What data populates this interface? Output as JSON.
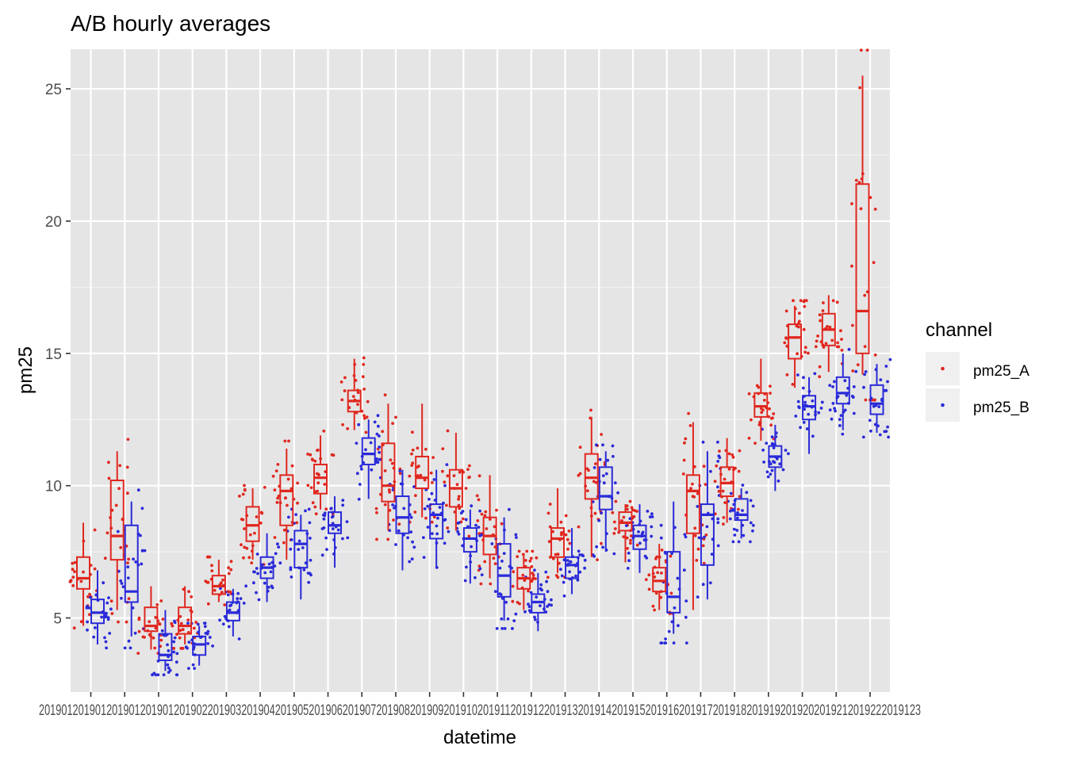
{
  "chart_data": {
    "type": "boxplot",
    "title": "A/B hourly averages",
    "xlabel": "datetime",
    "ylabel": "pm25",
    "ylim": [
      2.2,
      26.5
    ],
    "y_ticks": [
      5,
      10,
      15,
      20,
      25
    ],
    "grid": true,
    "legend": {
      "title": "channel",
      "position": "right"
    },
    "x_tick_label_text": "2019012019012019012019012019022019032019042019052019062019072019082019092019102019112019122019132019142019152019162019172019182019192019202019212019222019123",
    "series": [
      {
        "name": "pm25_A",
        "color": "#E0271F"
      },
      {
        "name": "pm25_B",
        "color": "#2A2AD9"
      }
    ],
    "categories": [
      "00",
      "01",
      "02",
      "03",
      "04",
      "05",
      "06",
      "07",
      "08",
      "09",
      "10",
      "11",
      "12",
      "13",
      "14",
      "15",
      "16",
      "17",
      "18",
      "19",
      "20",
      "21",
      "22",
      "23"
    ],
    "boxes": {
      "pm25_A": [
        {
          "lo": 4.7,
          "q1": 6.1,
          "med": 6.5,
          "q3": 7.3,
          "hi": 8.6
        },
        {
          "lo": 5.3,
          "q1": 7.2,
          "med": 8.1,
          "q3": 10.2,
          "hi": 11.3
        },
        {
          "lo": 3.8,
          "q1": 4.5,
          "med": 4.7,
          "q3": 5.4,
          "hi": 6.2
        },
        {
          "lo": 4.0,
          "q1": 4.4,
          "med": 4.7,
          "q3": 5.4,
          "hi": 6.2
        },
        {
          "lo": 5.6,
          "q1": 5.9,
          "med": 6.2,
          "q3": 6.6,
          "hi": 7.2
        },
        {
          "lo": 7.2,
          "q1": 7.9,
          "med": 8.5,
          "q3": 9.2,
          "hi": 9.9
        },
        {
          "lo": 7.2,
          "q1": 8.5,
          "med": 9.8,
          "q3": 10.4,
          "hi": 11.4
        },
        {
          "lo": 9.1,
          "q1": 9.7,
          "med": 10.3,
          "q3": 10.8,
          "hi": 11.9
        },
        {
          "lo": 12.1,
          "q1": 12.8,
          "med": 13.2,
          "q3": 13.6,
          "hi": 14.8
        },
        {
          "lo": 8.3,
          "q1": 9.4,
          "med": 10.0,
          "q3": 11.6,
          "hi": 13.1
        },
        {
          "lo": 8.8,
          "q1": 9.9,
          "med": 10.3,
          "q3": 11.1,
          "hi": 13.1
        },
        {
          "lo": 8.3,
          "q1": 9.2,
          "med": 9.9,
          "q3": 10.6,
          "hi": 12.0
        },
        {
          "lo": 6.5,
          "q1": 7.4,
          "med": 8.1,
          "q3": 8.8,
          "hi": 10.4
        },
        {
          "lo": 5.3,
          "q1": 6.1,
          "med": 6.5,
          "q3": 6.9,
          "hi": 7.4
        },
        {
          "lo": 6.7,
          "q1": 7.3,
          "med": 8.0,
          "q3": 8.4,
          "hi": 9.9
        },
        {
          "lo": 7.3,
          "q1": 9.5,
          "med": 10.3,
          "q3": 11.2,
          "hi": 12.6
        },
        {
          "lo": 7.1,
          "q1": 8.3,
          "med": 8.6,
          "q3": 9.0,
          "hi": 9.3
        },
        {
          "lo": 5.3,
          "q1": 6.0,
          "med": 6.4,
          "q3": 6.9,
          "hi": 7.8
        },
        {
          "lo": 5.3,
          "q1": 8.2,
          "med": 9.8,
          "q3": 10.4,
          "hi": 12.4
        },
        {
          "lo": 8.6,
          "q1": 9.6,
          "med": 10.1,
          "q3": 10.7,
          "hi": 11.8
        },
        {
          "lo": 11.7,
          "q1": 12.6,
          "med": 13.0,
          "q3": 13.5,
          "hi": 14.8
        },
        {
          "lo": 13.7,
          "q1": 14.8,
          "med": 15.6,
          "q3": 16.1,
          "hi": 16.8
        },
        {
          "lo": 14.3,
          "q1": 15.3,
          "med": 15.9,
          "q3": 16.5,
          "hi": 17.2
        },
        {
          "lo": 14.2,
          "q1": 15.0,
          "med": 16.6,
          "q3": 21.4,
          "hi": 25.5
        }
      ],
      "pm25_B": [
        {
          "lo": 4.0,
          "q1": 4.8,
          "med": 5.2,
          "q3": 5.7,
          "hi": 6.8
        },
        {
          "lo": 4.3,
          "q1": 5.6,
          "med": 6.0,
          "q3": 8.5,
          "hi": 9.4
        },
        {
          "lo": 3.0,
          "q1": 3.4,
          "med": 3.6,
          "q3": 4.4,
          "hi": 5.3
        },
        {
          "lo": 3.2,
          "q1": 3.6,
          "med": 4.0,
          "q3": 4.3,
          "hi": 4.7
        },
        {
          "lo": 4.3,
          "q1": 4.9,
          "med": 5.2,
          "q3": 5.6,
          "hi": 6.1
        },
        {
          "lo": 5.6,
          "q1": 6.5,
          "med": 6.9,
          "q3": 7.3,
          "hi": 8.2
        },
        {
          "lo": 5.7,
          "q1": 6.9,
          "med": 7.8,
          "q3": 8.3,
          "hi": 8.9
        },
        {
          "lo": 6.9,
          "q1": 8.2,
          "med": 8.5,
          "q3": 9.0,
          "hi": 9.6
        },
        {
          "lo": 9.5,
          "q1": 10.8,
          "med": 11.2,
          "q3": 11.8,
          "hi": 12.5
        },
        {
          "lo": 6.8,
          "q1": 8.2,
          "med": 8.8,
          "q3": 9.6,
          "hi": 10.6
        },
        {
          "lo": 6.9,
          "q1": 8.0,
          "med": 8.9,
          "q3": 9.3,
          "hi": 10.6
        },
        {
          "lo": 6.3,
          "q1": 7.5,
          "med": 8.0,
          "q3": 8.4,
          "hi": 9.1
        },
        {
          "lo": 4.9,
          "q1": 5.8,
          "med": 6.6,
          "q3": 7.8,
          "hi": 8.8
        },
        {
          "lo": 4.5,
          "q1": 5.2,
          "med": 5.6,
          "q3": 5.9,
          "hi": 6.7
        },
        {
          "lo": 5.9,
          "q1": 6.5,
          "med": 7.0,
          "q3": 7.3,
          "hi": 8.4
        },
        {
          "lo": 7.5,
          "q1": 9.1,
          "med": 9.6,
          "q3": 10.7,
          "hi": 11.3
        },
        {
          "lo": 6.7,
          "q1": 7.6,
          "med": 8.1,
          "q3": 8.5,
          "hi": 9.3
        },
        {
          "lo": 4.4,
          "q1": 5.2,
          "med": 5.8,
          "q3": 7.5,
          "hi": 9.4
        },
        {
          "lo": 5.7,
          "q1": 7.0,
          "med": 8.9,
          "q3": 9.3,
          "hi": 11.3
        },
        {
          "lo": 8.0,
          "q1": 8.7,
          "med": 8.9,
          "q3": 9.5,
          "hi": 9.9
        },
        {
          "lo": 9.8,
          "q1": 10.7,
          "med": 11.1,
          "q3": 11.5,
          "hi": 12.3
        },
        {
          "lo": 11.2,
          "q1": 12.5,
          "med": 13.0,
          "q3": 13.4,
          "hi": 14.1
        },
        {
          "lo": 12.1,
          "q1": 13.1,
          "med": 13.5,
          "q3": 14.1,
          "hi": 15.0
        },
        {
          "lo": 12.0,
          "q1": 12.7,
          "med": 13.1,
          "q3": 13.8,
          "hi": 14.6
        }
      ]
    }
  }
}
